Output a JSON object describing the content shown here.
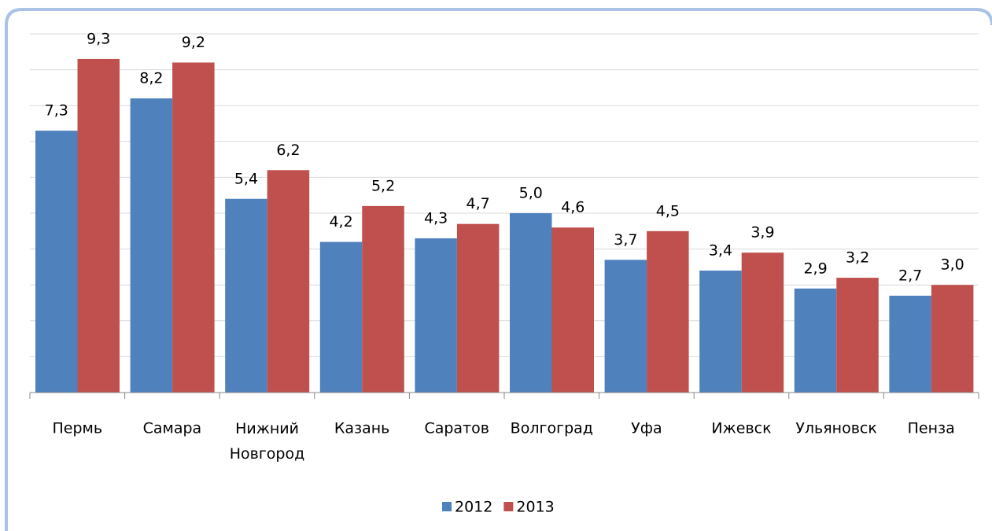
{
  "chart_data": {
    "type": "bar",
    "categories": [
      "Пермь",
      "Самара",
      "Нижний Новгород",
      "Казань",
      "Саратов",
      "Волгоград",
      "Уфа",
      "Ижевск",
      "Ульяновск",
      "Пенза"
    ],
    "series": [
      {
        "name": "2012",
        "color": "#4f81bd",
        "values": [
          7.3,
          8.2,
          5.4,
          4.2,
          4.3,
          5.0,
          3.7,
          3.4,
          2.9,
          2.7
        ],
        "value_labels": [
          "7,3",
          "8,2",
          "5,4",
          "4,2",
          "4,3",
          "5,0",
          "3,7",
          "3,4",
          "2,9",
          "2,7"
        ]
      },
      {
        "name": "2013",
        "color": "#c0504d",
        "values": [
          9.3,
          9.2,
          6.2,
          5.2,
          4.7,
          4.6,
          4.5,
          3.9,
          3.2,
          3.0
        ],
        "value_labels": [
          "9,3",
          "9,2",
          "6,2",
          "5,2",
          "4,7",
          "4,6",
          "4,5",
          "3,9",
          "3,2",
          "3,0"
        ]
      }
    ],
    "ylim": [
      0,
      10
    ],
    "yticks": [
      0,
      1,
      2,
      3,
      4,
      5,
      6,
      7,
      8,
      9,
      10
    ],
    "grid": true,
    "legend": "bottom"
  }
}
